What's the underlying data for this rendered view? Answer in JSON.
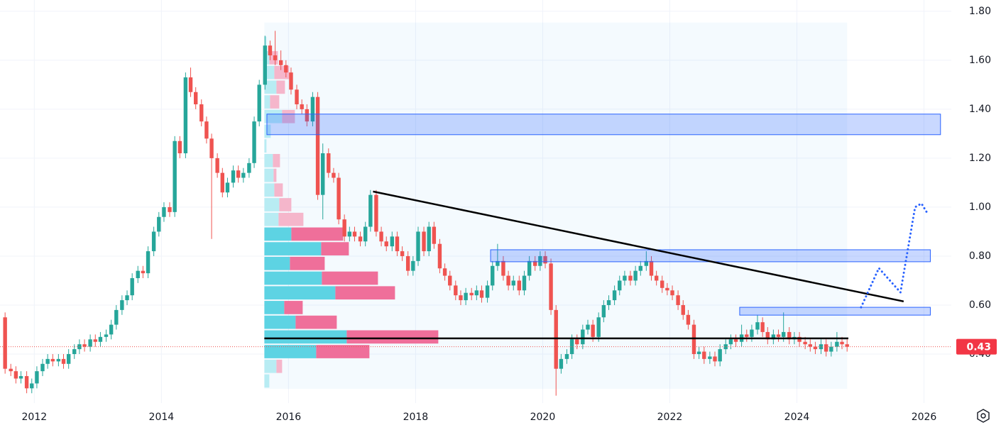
{
  "chart_data": {
    "type": "candlestick",
    "xlim": [
      2011.46,
      2026.43
    ],
    "ylim": [
      0.2,
      1.846
    ],
    "xticks": [
      2012,
      2014,
      2016,
      2018,
      2020,
      2022,
      2024,
      2026
    ],
    "yticks": [
      {
        "value": 0.4,
        "label": "0.40"
      },
      {
        "value": 0.6,
        "label": "0.60"
      },
      {
        "value": 0.8,
        "label": "0.80"
      },
      {
        "value": 1.0,
        "label": "1.00"
      },
      {
        "value": 1.2,
        "label": "1.20"
      },
      {
        "value": 1.4,
        "label": "1.40"
      },
      {
        "value": 1.6,
        "label": "1.60"
      },
      {
        "value": 1.8,
        "label": "1.80"
      }
    ],
    "grid": true,
    "up_color": "#26a69a",
    "down_color": "#ef5350",
    "last_price": 0.43,
    "x": [
      2011.54,
      2011.63,
      2011.71,
      2011.79,
      2011.88,
      2011.96,
      2012.04,
      2012.13,
      2012.21,
      2012.29,
      2012.38,
      2012.46,
      2012.54,
      2012.63,
      2012.71,
      2012.79,
      2012.88,
      2012.96,
      2013.04,
      2013.13,
      2013.21,
      2013.29,
      2013.38,
      2013.46,
      2013.54,
      2013.63,
      2013.71,
      2013.79,
      2013.88,
      2013.96,
      2014.04,
      2014.13,
      2014.21,
      2014.29,
      2014.38,
      2014.46,
      2014.54,
      2014.63,
      2014.71,
      2014.79,
      2014.88,
      2014.96,
      2015.04,
      2015.13,
      2015.21,
      2015.29,
      2015.38,
      2015.46,
      2015.54,
      2015.63,
      2015.71,
      2015.79,
      2015.88,
      2015.96,
      2016.04,
      2016.13,
      2016.21,
      2016.29,
      2016.38,
      2016.46,
      2016.54,
      2016.63,
      2016.71,
      2016.79,
      2016.88,
      2016.96,
      2017.04,
      2017.13,
      2017.21,
      2017.29,
      2017.38,
      2017.46,
      2017.54,
      2017.63,
      2017.71,
      2017.79,
      2017.88,
      2017.96,
      2018.04,
      2018.13,
      2018.21,
      2018.29,
      2018.38,
      2018.46,
      2018.54,
      2018.63,
      2018.71,
      2018.79,
      2018.88,
      2018.96,
      2019.04,
      2019.13,
      2019.21,
      2019.29,
      2019.38,
      2019.46,
      2019.54,
      2019.63,
      2019.71,
      2019.79,
      2019.88,
      2019.96,
      2020.04,
      2020.13,
      2020.21,
      2020.29,
      2020.38,
      2020.46,
      2020.54,
      2020.63,
      2020.71,
      2020.79,
      2020.88,
      2020.96,
      2021.04,
      2021.13,
      2021.21,
      2021.29,
      2021.38,
      2021.46,
      2021.54,
      2021.63,
      2021.71,
      2021.79,
      2021.88,
      2021.96,
      2022.04,
      2022.13,
      2022.21,
      2022.29,
      2022.38,
      2022.46,
      2022.54,
      2022.63,
      2022.71,
      2022.79,
      2022.88,
      2022.96,
      2023.04,
      2023.13,
      2023.21,
      2023.29,
      2023.38,
      2023.46,
      2023.54,
      2023.63,
      2023.71,
      2023.79,
      2023.88,
      2023.96,
      2024.04,
      2024.13,
      2024.21,
      2024.29,
      2024.38,
      2024.46,
      2024.54,
      2024.63,
      2024.71,
      2024.79
    ],
    "candles": [
      [
        0.55,
        0.57,
        0.32,
        0.34
      ],
      [
        0.34,
        0.36,
        0.31,
        0.33
      ],
      [
        0.33,
        0.35,
        0.28,
        0.3
      ],
      [
        0.3,
        0.33,
        0.28,
        0.31
      ],
      [
        0.31,
        0.33,
        0.24,
        0.26
      ],
      [
        0.26,
        0.3,
        0.24,
        0.28
      ],
      [
        0.28,
        0.35,
        0.26,
        0.33
      ],
      [
        0.33,
        0.38,
        0.31,
        0.36
      ],
      [
        0.36,
        0.4,
        0.34,
        0.38
      ],
      [
        0.38,
        0.4,
        0.35,
        0.37
      ],
      [
        0.37,
        0.4,
        0.35,
        0.38
      ],
      [
        0.38,
        0.4,
        0.34,
        0.36
      ],
      [
        0.36,
        0.42,
        0.34,
        0.4
      ],
      [
        0.4,
        0.44,
        0.38,
        0.42
      ],
      [
        0.42,
        0.46,
        0.4,
        0.44
      ],
      [
        0.44,
        0.46,
        0.41,
        0.43
      ],
      [
        0.43,
        0.48,
        0.41,
        0.46
      ],
      [
        0.46,
        0.48,
        0.43,
        0.45
      ],
      [
        0.45,
        0.49,
        0.43,
        0.47
      ],
      [
        0.47,
        0.5,
        0.45,
        0.48
      ],
      [
        0.48,
        0.54,
        0.46,
        0.52
      ],
      [
        0.52,
        0.6,
        0.5,
        0.58
      ],
      [
        0.58,
        0.64,
        0.56,
        0.62
      ],
      [
        0.62,
        0.66,
        0.6,
        0.64
      ],
      [
        0.64,
        0.73,
        0.62,
        0.71
      ],
      [
        0.71,
        0.76,
        0.69,
        0.74
      ],
      [
        0.74,
        0.76,
        0.71,
        0.73
      ],
      [
        0.73,
        0.84,
        0.71,
        0.82
      ],
      [
        0.82,
        0.92,
        0.8,
        0.9
      ],
      [
        0.9,
        0.98,
        0.88,
        0.96
      ],
      [
        0.96,
        1.02,
        0.94,
        1.0
      ],
      [
        1.0,
        1.02,
        0.96,
        0.98
      ],
      [
        0.98,
        1.29,
        0.96,
        1.27
      ],
      [
        1.27,
        1.29,
        1.2,
        1.22
      ],
      [
        1.22,
        1.55,
        1.2,
        1.53
      ],
      [
        1.53,
        1.57,
        1.45,
        1.47
      ],
      [
        1.47,
        1.49,
        1.4,
        1.42
      ],
      [
        1.42,
        1.44,
        1.33,
        1.35
      ],
      [
        1.35,
        1.37,
        1.26,
        1.28
      ],
      [
        1.28,
        1.3,
        0.87,
        1.2
      ],
      [
        1.2,
        1.22,
        1.12,
        1.14
      ],
      [
        1.14,
        1.16,
        1.04,
        1.06
      ],
      [
        1.06,
        1.12,
        1.04,
        1.1
      ],
      [
        1.1,
        1.17,
        1.08,
        1.15
      ],
      [
        1.15,
        1.17,
        1.1,
        1.12
      ],
      [
        1.12,
        1.16,
        1.1,
        1.14
      ],
      [
        1.14,
        1.2,
        1.12,
        1.18
      ],
      [
        1.18,
        1.37,
        1.16,
        1.35
      ],
      [
        1.35,
        1.52,
        1.33,
        1.5
      ],
      [
        1.5,
        1.7,
        1.48,
        1.66
      ],
      [
        1.66,
        1.68,
        1.6,
        1.62
      ],
      [
        1.62,
        1.72,
        1.58,
        1.6
      ],
      [
        1.6,
        1.64,
        1.56,
        1.58
      ],
      [
        1.58,
        1.6,
        1.53,
        1.55
      ],
      [
        1.55,
        1.57,
        1.46,
        1.48
      ],
      [
        1.48,
        1.5,
        1.4,
        1.42
      ],
      [
        1.42,
        1.44,
        1.38,
        1.4
      ],
      [
        1.4,
        1.42,
        1.33,
        1.35
      ],
      [
        1.35,
        1.47,
        1.33,
        1.45
      ],
      [
        1.45,
        1.47,
        1.03,
        1.05
      ],
      [
        1.05,
        1.26,
        0.95,
        1.22
      ],
      [
        1.22,
        1.24,
        1.12,
        1.14
      ],
      [
        1.14,
        1.16,
        1.1,
        1.12
      ],
      [
        1.12,
        1.14,
        0.93,
        0.95
      ],
      [
        0.95,
        0.97,
        0.86,
        0.88
      ],
      [
        0.88,
        0.92,
        0.86,
        0.9
      ],
      [
        0.9,
        0.92,
        0.86,
        0.88
      ],
      [
        0.88,
        0.9,
        0.84,
        0.86
      ],
      [
        0.86,
        0.94,
        0.84,
        0.92
      ],
      [
        0.92,
        1.07,
        0.9,
        1.05
      ],
      [
        1.05,
        1.07,
        0.88,
        0.9
      ],
      [
        0.9,
        0.92,
        0.84,
        0.86
      ],
      [
        0.86,
        0.88,
        0.82,
        0.84
      ],
      [
        0.84,
        0.9,
        0.82,
        0.88
      ],
      [
        0.88,
        0.9,
        0.8,
        0.82
      ],
      [
        0.82,
        0.84,
        0.78,
        0.8
      ],
      [
        0.8,
        0.82,
        0.72,
        0.74
      ],
      [
        0.74,
        0.8,
        0.72,
        0.78
      ],
      [
        0.78,
        0.92,
        0.76,
        0.9
      ],
      [
        0.9,
        0.92,
        0.8,
        0.82
      ],
      [
        0.82,
        0.94,
        0.8,
        0.92
      ],
      [
        0.92,
        0.94,
        0.83,
        0.85
      ],
      [
        0.85,
        0.87,
        0.73,
        0.75
      ],
      [
        0.75,
        0.77,
        0.7,
        0.72
      ],
      [
        0.72,
        0.74,
        0.66,
        0.68
      ],
      [
        0.68,
        0.7,
        0.62,
        0.64
      ],
      [
        0.64,
        0.66,
        0.6,
        0.62
      ],
      [
        0.62,
        0.67,
        0.6,
        0.65
      ],
      [
        0.65,
        0.67,
        0.62,
        0.64
      ],
      [
        0.64,
        0.68,
        0.62,
        0.66
      ],
      [
        0.66,
        0.68,
        0.61,
        0.63
      ],
      [
        0.63,
        0.7,
        0.61,
        0.68
      ],
      [
        0.68,
        0.78,
        0.66,
        0.76
      ],
      [
        0.76,
        0.85,
        0.74,
        0.78
      ],
      [
        0.78,
        0.8,
        0.7,
        0.72
      ],
      [
        0.72,
        0.74,
        0.66,
        0.68
      ],
      [
        0.68,
        0.72,
        0.66,
        0.7
      ],
      [
        0.7,
        0.72,
        0.64,
        0.66
      ],
      [
        0.66,
        0.74,
        0.64,
        0.72
      ],
      [
        0.72,
        0.8,
        0.7,
        0.78
      ],
      [
        0.78,
        0.8,
        0.74,
        0.76
      ],
      [
        0.76,
        0.82,
        0.74,
        0.8
      ],
      [
        0.8,
        0.82,
        0.75,
        0.77
      ],
      [
        0.77,
        0.79,
        0.56,
        0.58
      ],
      [
        0.58,
        0.6,
        0.23,
        0.34
      ],
      [
        0.34,
        0.4,
        0.32,
        0.38
      ],
      [
        0.38,
        0.42,
        0.36,
        0.4
      ],
      [
        0.4,
        0.48,
        0.38,
        0.46
      ],
      [
        0.46,
        0.48,
        0.42,
        0.44
      ],
      [
        0.44,
        0.52,
        0.42,
        0.5
      ],
      [
        0.5,
        0.54,
        0.48,
        0.52
      ],
      [
        0.52,
        0.54,
        0.45,
        0.47
      ],
      [
        0.47,
        0.57,
        0.45,
        0.55
      ],
      [
        0.55,
        0.62,
        0.53,
        0.6
      ],
      [
        0.6,
        0.64,
        0.58,
        0.62
      ],
      [
        0.62,
        0.68,
        0.6,
        0.66
      ],
      [
        0.66,
        0.72,
        0.64,
        0.7
      ],
      [
        0.7,
        0.74,
        0.68,
        0.72
      ],
      [
        0.72,
        0.74,
        0.68,
        0.7
      ],
      [
        0.7,
        0.76,
        0.68,
        0.74
      ],
      [
        0.74,
        0.78,
        0.72,
        0.76
      ],
      [
        0.76,
        0.82,
        0.74,
        0.78
      ],
      [
        0.78,
        0.8,
        0.7,
        0.72
      ],
      [
        0.72,
        0.74,
        0.68,
        0.7
      ],
      [
        0.7,
        0.72,
        0.65,
        0.67
      ],
      [
        0.67,
        0.69,
        0.64,
        0.66
      ],
      [
        0.66,
        0.68,
        0.62,
        0.64
      ],
      [
        0.64,
        0.66,
        0.58,
        0.6
      ],
      [
        0.6,
        0.62,
        0.54,
        0.56
      ],
      [
        0.56,
        0.58,
        0.5,
        0.52
      ],
      [
        0.52,
        0.54,
        0.38,
        0.4
      ],
      [
        0.4,
        0.43,
        0.38,
        0.41
      ],
      [
        0.41,
        0.43,
        0.36,
        0.38
      ],
      [
        0.38,
        0.41,
        0.36,
        0.39
      ],
      [
        0.39,
        0.41,
        0.35,
        0.37
      ],
      [
        0.37,
        0.44,
        0.35,
        0.42
      ],
      [
        0.42,
        0.46,
        0.4,
        0.44
      ],
      [
        0.44,
        0.48,
        0.42,
        0.46
      ],
      [
        0.46,
        0.48,
        0.43,
        0.45
      ],
      [
        0.45,
        0.52,
        0.43,
        0.48
      ],
      [
        0.48,
        0.5,
        0.45,
        0.47
      ],
      [
        0.47,
        0.52,
        0.45,
        0.5
      ],
      [
        0.5,
        0.56,
        0.48,
        0.53
      ],
      [
        0.53,
        0.55,
        0.47,
        0.49
      ],
      [
        0.49,
        0.51,
        0.44,
        0.46
      ],
      [
        0.46,
        0.5,
        0.44,
        0.48
      ],
      [
        0.48,
        0.5,
        0.45,
        0.47
      ],
      [
        0.47,
        0.57,
        0.45,
        0.49
      ],
      [
        0.49,
        0.51,
        0.44,
        0.46
      ],
      [
        0.46,
        0.49,
        0.44,
        0.47
      ],
      [
        0.47,
        0.49,
        0.43,
        0.45
      ],
      [
        0.45,
        0.47,
        0.42,
        0.44
      ],
      [
        0.44,
        0.46,
        0.41,
        0.43
      ],
      [
        0.43,
        0.45,
        0.4,
        0.42
      ],
      [
        0.42,
        0.46,
        0.4,
        0.44
      ],
      [
        0.44,
        0.46,
        0.39,
        0.41
      ],
      [
        0.41,
        0.45,
        0.39,
        0.43
      ],
      [
        0.43,
        0.49,
        0.41,
        0.45
      ],
      [
        0.45,
        0.47,
        0.42,
        0.44
      ],
      [
        0.44,
        0.46,
        0.41,
        0.43
      ]
    ],
    "profile": {
      "start": 2015.62,
      "end": 2024.79,
      "price_range": [
        0.258,
        1.754
      ],
      "value_area": [
        0.41,
        0.89
      ],
      "rows": [
        {
          "price": 0.29,
          "up": 7,
          "down": 0
        },
        {
          "price": 0.35,
          "up": 17,
          "down": 8
        },
        {
          "price": 0.41,
          "up": 73,
          "down": 75
        },
        {
          "price": 0.47,
          "up": 116,
          "down": 129
        },
        {
          "price": 0.53,
          "up": 44,
          "down": 58
        },
        {
          "price": 0.59,
          "up": 28,
          "down": 26
        },
        {
          "price": 0.65,
          "up": 100,
          "down": 84
        },
        {
          "price": 0.71,
          "up": 81,
          "down": 79
        },
        {
          "price": 0.77,
          "up": 36,
          "down": 49
        },
        {
          "price": 0.83,
          "up": 80,
          "down": 39
        },
        {
          "price": 0.89,
          "up": 38,
          "down": 73
        },
        {
          "price": 0.95,
          "up": 20,
          "down": 35
        },
        {
          "price": 1.01,
          "up": 21,
          "down": 17
        },
        {
          "price": 1.07,
          "up": 14,
          "down": 12
        },
        {
          "price": 1.13,
          "up": 13,
          "down": 4
        },
        {
          "price": 1.19,
          "up": 12,
          "down": 10
        },
        {
          "price": 1.25,
          "up": 3,
          "down": 0
        },
        {
          "price": 1.31,
          "up": 9,
          "down": 0
        },
        {
          "price": 1.37,
          "up": 25,
          "down": 18
        },
        {
          "price": 1.43,
          "up": 8,
          "down": 13
        },
        {
          "price": 1.49,
          "up": 17,
          "down": 12
        },
        {
          "price": 1.55,
          "up": 14,
          "down": 21
        },
        {
          "price": 1.61,
          "up": 7,
          "down": 12
        },
        {
          "price": 1.67,
          "up": 3,
          "down": 0
        }
      ]
    },
    "zones": [
      [
        2015.66,
        2026.26,
        1.296,
        1.38
      ],
      [
        2019.18,
        2026.1,
        0.777,
        0.826
      ],
      [
        2023.1,
        2026.1,
        0.559,
        0.591
      ]
    ],
    "trend_line": [
      [
        2017.33,
        1.064
      ],
      [
        2025.68,
        0.615
      ]
    ],
    "support_line": [
      [
        2015.62,
        0.464
      ],
      [
        2024.81,
        0.464
      ]
    ],
    "projection": [
      [
        2025.01,
        0.591
      ],
      [
        2025.29,
        0.751
      ],
      [
        2025.63,
        0.652
      ],
      [
        2025.86,
        1.0
      ],
      [
        2025.96,
        1.015
      ],
      [
        2026.07,
        0.968
      ]
    ]
  }
}
